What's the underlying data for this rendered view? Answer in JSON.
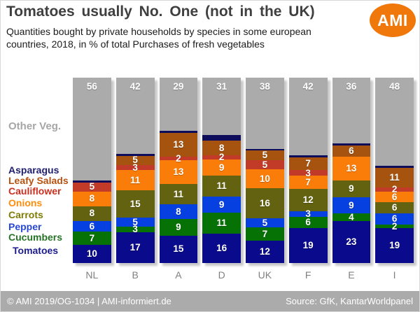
{
  "header": {
    "title": "Tomatoes usually No. One (not in the UK)",
    "subtitle_line1": "Quantities bought by private households by species in some european",
    "subtitle_line2": "countries, 2018, in % of total Purchases of fresh vegetables",
    "logo_text": "AMI",
    "logo_color": "#F0770A"
  },
  "footer": {
    "left_text": "© AMI 2019/OG-1034 | AMI-informiert.de",
    "right_text": "Source: GfK, KantarWorldpanel",
    "bg_color": "#ABABAB"
  },
  "legend": {
    "items": [
      {
        "label": "Other Veg.",
        "color": "#A6A6A6"
      },
      {
        "label": "Asparagus",
        "color": "#1F1F70"
      },
      {
        "label": "Leafy Salads",
        "color": "#B5520E"
      },
      {
        "label": "Cauliflower",
        "color": "#CD2F1E"
      },
      {
        "label": "Onions",
        "color": "#FF8D0A"
      },
      {
        "label": "Carrots",
        "color": "#7E7C04"
      },
      {
        "label": "Pepper",
        "color": "#2847D8"
      },
      {
        "label": "Cucumbers",
        "color": "#267326"
      },
      {
        "label": "Tomatoes",
        "color": "#1C1C8F"
      }
    ]
  },
  "chart_data": {
    "type": "bar",
    "stacked": true,
    "percent_of": "total purchases of fresh vegetables",
    "unit": "%",
    "grid": false,
    "legend_position": "left",
    "categories": [
      "NL",
      "B",
      "A",
      "D",
      "UK",
      "F",
      "E",
      "I"
    ],
    "series": [
      {
        "name": "Other Veg.",
        "color": "#ABABAB",
        "show_labels": true,
        "values": [
          56,
          42,
          29,
          31,
          38,
          42,
          36,
          48
        ]
      },
      {
        "name": "Asparagus",
        "color": "#0D0D5C",
        "show_labels": false,
        "values_estimated": true,
        "values": [
          1,
          1,
          1,
          3,
          1,
          1,
          1,
          1
        ]
      },
      {
        "name": "Leafy Salads",
        "color": "#A5530F",
        "show_labels": true,
        "values": [
          0,
          5,
          13,
          8,
          5,
          7,
          6,
          11
        ]
      },
      {
        "name": "Cauliflower",
        "color": "#C23B28",
        "show_labels": true,
        "values": [
          5,
          3,
          2,
          2,
          5,
          3,
          0,
          2
        ]
      },
      {
        "name": "Onions",
        "color": "#FB7D09",
        "show_labels": true,
        "values": [
          8,
          11,
          13,
          9,
          10,
          7,
          13,
          6
        ]
      },
      {
        "name": "Carrots",
        "color": "#636211",
        "show_labels": true,
        "values": [
          8,
          15,
          11,
          11,
          16,
          12,
          9,
          6
        ]
      },
      {
        "name": "Pepper",
        "color": "#0740E0",
        "show_labels": true,
        "values": [
          6,
          5,
          8,
          9,
          5,
          3,
          9,
          6
        ]
      },
      {
        "name": "Cucumbers",
        "color": "#067206",
        "show_labels": true,
        "values": [
          7,
          3,
          9,
          11,
          7,
          6,
          4,
          2
        ]
      },
      {
        "name": "Tomatoes",
        "color": "#0A0A8C",
        "show_labels": true,
        "values": [
          10,
          17,
          15,
          16,
          12,
          19,
          23,
          19
        ]
      }
    ]
  }
}
